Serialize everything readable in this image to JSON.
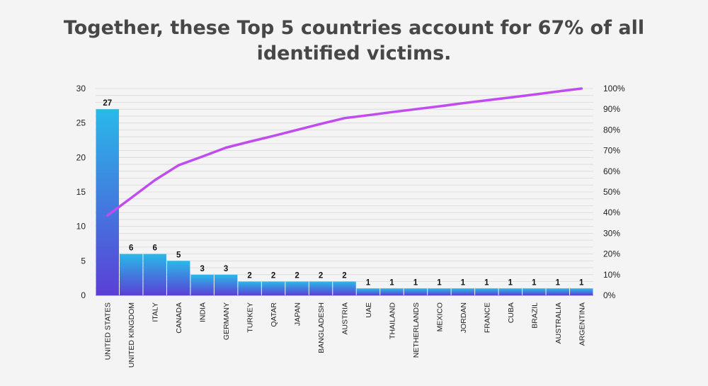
{
  "title_lines": [
    "Together, these Top 5 countries account for 67% of all",
    "identified victims."
  ],
  "colors": {
    "bar_top": "#29b9e8",
    "bar_bottom": "#5b3fd6",
    "line": "#c04cf0",
    "grid": "#d8d8d8",
    "axis": "#999999"
  },
  "chart_data": {
    "type": "bar",
    "categories": [
      "UNITED STATES",
      "UNITED KINGDOM",
      "ITALY",
      "CANADA",
      "INDIA",
      "GERMANY",
      "TURKEY",
      "QATAR",
      "JAPAN",
      "BANGLADESH",
      "AUSTRIA",
      "UAE",
      "THAILAND",
      "NETHERLANDS",
      "MEXICO",
      "JORDAN",
      "FRANCE",
      "CUBA",
      "BRAZIL",
      "AUSTRALIA",
      "ARGENTINA"
    ],
    "values": [
      27,
      6,
      6,
      5,
      3,
      3,
      2,
      2,
      2,
      2,
      2,
      1,
      1,
      1,
      1,
      1,
      1,
      1,
      1,
      1,
      1
    ],
    "data_labels": [
      "27",
      "6",
      "6",
      "5",
      "3",
      "3",
      "2",
      "2",
      "2",
      "2",
      "2",
      "1",
      "1",
      "1",
      "1",
      "1",
      "1",
      "1",
      "1",
      "1",
      "1"
    ],
    "ylim": [
      0,
      30
    ],
    "y_ticks": [
      "0",
      "5",
      "10",
      "15",
      "20",
      "25",
      "30"
    ],
    "y2_ticks": [
      "0%",
      "10%",
      "20%",
      "30%",
      "40%",
      "50%",
      "60%",
      "70%",
      "80%",
      "90%",
      "100%"
    ],
    "y2lim": [
      0,
      100
    ],
    "line_series": {
      "values": [
        38.6,
        47.1,
        55.7,
        62.9,
        67.1,
        71.4,
        74.3,
        77.1,
        80.0,
        82.9,
        85.7,
        87.1,
        88.6,
        90.0,
        91.4,
        92.9,
        94.3,
        95.7,
        97.1,
        98.6,
        100.0
      ]
    },
    "grid": true,
    "xlabel": "",
    "ylabel": ""
  }
}
